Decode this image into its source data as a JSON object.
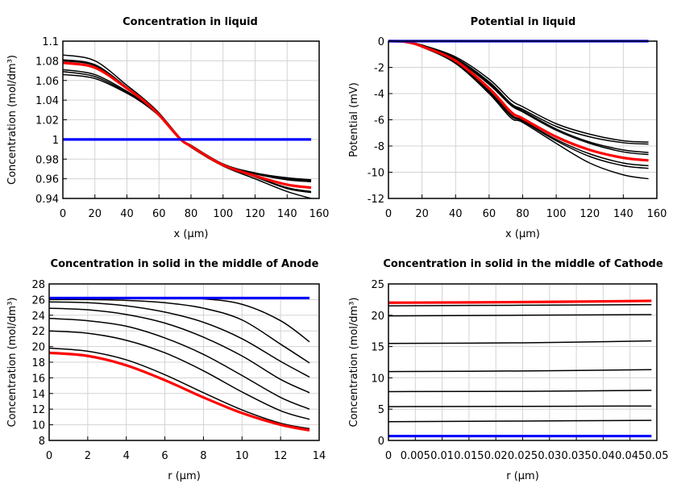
{
  "colors": {
    "black": "#000000",
    "red": "#ff0000",
    "blue": "#0000ff",
    "grid": "#d3d3d3"
  },
  "chart_data": [
    {
      "type": "line",
      "title": "Concentration in liquid",
      "xlabel": "x (µm)",
      "ylabel": "Concentration (mol/dm³)",
      "xlim": [
        0,
        160
      ],
      "ylim": [
        0.94,
        1.1
      ],
      "xticks": [
        0,
        20,
        40,
        60,
        80,
        100,
        120,
        140,
        160
      ],
      "xtick_labels": [
        "0",
        "20",
        "40",
        "60",
        "80",
        "100",
        "120",
        "140",
        "160"
      ],
      "yticks": [
        0.94,
        0.96,
        0.98,
        1.0,
        1.02,
        1.04,
        1.06,
        1.08,
        1.1
      ],
      "ytick_labels": [
        "0.94",
        "0.96",
        "0.98",
        "1",
        "1.02",
        "1.04",
        "1.06",
        "1.08",
        "1.1"
      ],
      "grid": true,
      "x": [
        0,
        20,
        40,
        50,
        60,
        73,
        80,
        100,
        120,
        140,
        155
      ],
      "series": [
        {
          "color": "black",
          "values": [
            1.086,
            1.08,
            1.055,
            1.042,
            1.027,
            1.002,
            0.992,
            0.973,
            0.96,
            0.947,
            0.94
          ]
        },
        {
          "color": "black",
          "values": [
            1.081,
            1.076,
            1.053,
            1.04,
            1.026,
            1.001,
            0.993,
            0.974,
            0.962,
            0.95,
            0.946
          ]
        },
        {
          "color": "black",
          "values": [
            1.08,
            1.075,
            1.053,
            1.04,
            1.026,
            1.001,
            0.993,
            0.974,
            0.962,
            0.951,
            0.947
          ]
        },
        {
          "color": "black",
          "values": [
            1.071,
            1.066,
            1.049,
            1.038,
            1.025,
            1.001,
            0.994,
            0.975,
            0.965,
            0.959,
            0.957
          ]
        },
        {
          "color": "black",
          "values": [
            1.069,
            1.064,
            1.048,
            1.038,
            1.025,
            1.001,
            0.994,
            0.975,
            0.965,
            0.96,
            0.958
          ]
        },
        {
          "color": "black",
          "values": [
            1.066,
            1.062,
            1.047,
            1.037,
            1.024,
            1.001,
            0.994,
            0.975,
            0.966,
            0.961,
            0.959
          ]
        },
        {
          "color": "red",
          "values": [
            1.078,
            1.073,
            1.052,
            1.04,
            1.025,
            1.001,
            0.993,
            0.974,
            0.963,
            0.954,
            0.951
          ]
        },
        {
          "color": "blue",
          "values": [
            1.0,
            1.0,
            1.0,
            1.0,
            1.0,
            1.0,
            1.0,
            1.0,
            1.0,
            1.0,
            1.0
          ]
        }
      ]
    },
    {
      "type": "line",
      "title": "Potential in liquid",
      "xlabel": "x (µm)",
      "ylabel": "Potential (mV)",
      "xlim": [
        0,
        160
      ],
      "ylim": [
        -12,
        0
      ],
      "xticks": [
        0,
        20,
        40,
        60,
        80,
        100,
        120,
        140,
        160
      ],
      "xtick_labels": [
        "0",
        "20",
        "40",
        "60",
        "80",
        "100",
        "120",
        "140",
        "160"
      ],
      "yticks": [
        -12,
        -10,
        -8,
        -6,
        -4,
        -2,
        0
      ],
      "ytick_labels": [
        "-12",
        "-10",
        "-8",
        "-6",
        "-4",
        "-2",
        "0"
      ],
      "grid": true,
      "x": [
        0,
        10,
        20,
        40,
        60,
        73,
        80,
        100,
        120,
        140,
        155
      ],
      "series": [
        {
          "color": "black",
          "values": [
            0,
            -0.05,
            -0.3,
            -1.2,
            -2.9,
            -4.5,
            -5.0,
            -6.3,
            -7.1,
            -7.6,
            -7.7
          ]
        },
        {
          "color": "black",
          "values": [
            0,
            -0.05,
            -0.3,
            -1.3,
            -3.1,
            -4.75,
            -5.2,
            -6.5,
            -7.3,
            -7.75,
            -7.85
          ]
        },
        {
          "color": "black",
          "values": [
            0,
            -0.05,
            -0.35,
            -1.3,
            -3.2,
            -4.85,
            -5.3,
            -6.7,
            -7.7,
            -8.3,
            -8.5
          ]
        },
        {
          "color": "black",
          "values": [
            0,
            -0.05,
            -0.35,
            -1.4,
            -3.3,
            -4.9,
            -5.4,
            -6.8,
            -7.8,
            -8.45,
            -8.65
          ]
        },
        {
          "color": "black",
          "values": [
            0,
            -0.05,
            -0.4,
            -1.6,
            -3.8,
            -5.6,
            -6.05,
            -7.5,
            -8.6,
            -9.3,
            -9.5
          ]
        },
        {
          "color": "black",
          "values": [
            0,
            -0.05,
            -0.45,
            -1.65,
            -3.9,
            -5.7,
            -6.1,
            -7.6,
            -8.8,
            -9.5,
            -9.7
          ]
        },
        {
          "color": "black",
          "values": [
            0,
            -0.05,
            -0.45,
            -1.7,
            -4.0,
            -5.85,
            -6.2,
            -7.8,
            -9.3,
            -10.2,
            -10.5
          ]
        },
        {
          "color": "red",
          "values": [
            0,
            -0.05,
            -0.4,
            -1.5,
            -3.6,
            -5.4,
            -5.9,
            -7.3,
            -8.3,
            -8.9,
            -9.1
          ]
        },
        {
          "color": "blue",
          "values": [
            0,
            0,
            0,
            0,
            0,
            0,
            0,
            0,
            0,
            0,
            0
          ]
        }
      ]
    },
    {
      "type": "line",
      "title": "Concentration in solid in the middle of Anode",
      "xlabel": "r (µm)",
      "ylabel": "Concentration (mol/dm³)",
      "xlim": [
        0,
        14
      ],
      "ylim": [
        8,
        28
      ],
      "xticks": [
        0,
        2,
        4,
        6,
        8,
        10,
        12,
        14
      ],
      "xtick_labels": [
        "0",
        "2",
        "4",
        "6",
        "8",
        "10",
        "12",
        "14"
      ],
      "yticks": [
        8,
        10,
        12,
        14,
        16,
        18,
        20,
        22,
        24,
        26,
        28
      ],
      "ytick_labels": [
        "8",
        "10",
        "12",
        "14",
        "16",
        "18",
        "20",
        "22",
        "24",
        "26",
        "28"
      ],
      "grid": true,
      "x": [
        0,
        2,
        4,
        6,
        8,
        10,
        12,
        13.5
      ],
      "series": [
        {
          "color": "black",
          "values": [
            26.2,
            26.2,
            26.2,
            26.2,
            26.1,
            25.4,
            23.3,
            20.6
          ]
        },
        {
          "color": "black",
          "values": [
            26.0,
            26.0,
            25.9,
            25.6,
            24.9,
            23.4,
            20.3,
            17.9
          ]
        },
        {
          "color": "black",
          "values": [
            25.7,
            25.6,
            25.2,
            24.4,
            23.1,
            21.0,
            18.1,
            16.1
          ]
        },
        {
          "color": "black",
          "values": [
            24.9,
            24.7,
            24.1,
            23.0,
            21.2,
            18.8,
            15.8,
            14.1
          ]
        },
        {
          "color": "black",
          "values": [
            23.6,
            23.3,
            22.6,
            21.1,
            19.0,
            16.3,
            13.5,
            12.0
          ]
        },
        {
          "color": "black",
          "values": [
            22.0,
            21.7,
            20.8,
            19.2,
            16.9,
            14.2,
            11.8,
            10.7
          ]
        },
        {
          "color": "black",
          "values": [
            19.8,
            19.4,
            18.3,
            16.4,
            14.1,
            11.9,
            10.2,
            9.5
          ]
        },
        {
          "color": "red",
          "values": [
            19.2,
            18.8,
            17.6,
            15.7,
            13.5,
            11.5,
            10.0,
            9.3
          ]
        },
        {
          "color": "blue",
          "values": [
            26.2,
            26.2,
            26.2,
            26.2,
            26.2,
            26.2,
            26.2,
            26.2
          ]
        }
      ]
    },
    {
      "type": "line",
      "title": "Concentration in solid in the middle of Cathode",
      "xlabel": "r (µm)",
      "ylabel": "Concentration (mol/dm³)",
      "xlim": [
        0,
        0.05
      ],
      "ylim": [
        0,
        25
      ],
      "xticks": [
        0,
        0.005,
        0.01,
        0.015,
        0.02,
        0.025,
        0.03,
        0.035,
        0.04,
        0.045,
        0.05
      ],
      "xtick_labels": [
        "0",
        "0.005",
        "0.01",
        "0.015",
        "0.02",
        "0.025",
        "0.03",
        "0.035",
        "0.04",
        "0.045",
        "0.05"
      ],
      "yticks": [
        0,
        5,
        10,
        15,
        20,
        25
      ],
      "ytick_labels": [
        "0",
        "5",
        "10",
        "15",
        "20",
        "25"
      ],
      "grid": true,
      "x": [
        0,
        0.025,
        0.049
      ],
      "series": [
        {
          "color": "black",
          "values": [
            21.5,
            21.6,
            21.7
          ]
        },
        {
          "color": "black",
          "values": [
            19.9,
            20.0,
            20.1
          ]
        },
        {
          "color": "black",
          "values": [
            15.5,
            15.6,
            15.9
          ]
        },
        {
          "color": "black",
          "values": [
            11.0,
            11.1,
            11.3
          ]
        },
        {
          "color": "black",
          "values": [
            7.8,
            7.85,
            8.0
          ]
        },
        {
          "color": "black",
          "values": [
            5.4,
            5.45,
            5.5
          ]
        },
        {
          "color": "black",
          "values": [
            3.0,
            3.1,
            3.2
          ]
        },
        {
          "color": "red",
          "values": [
            22.0,
            22.1,
            22.3
          ]
        },
        {
          "color": "blue",
          "values": [
            0.7,
            0.7,
            0.7
          ]
        }
      ]
    }
  ]
}
